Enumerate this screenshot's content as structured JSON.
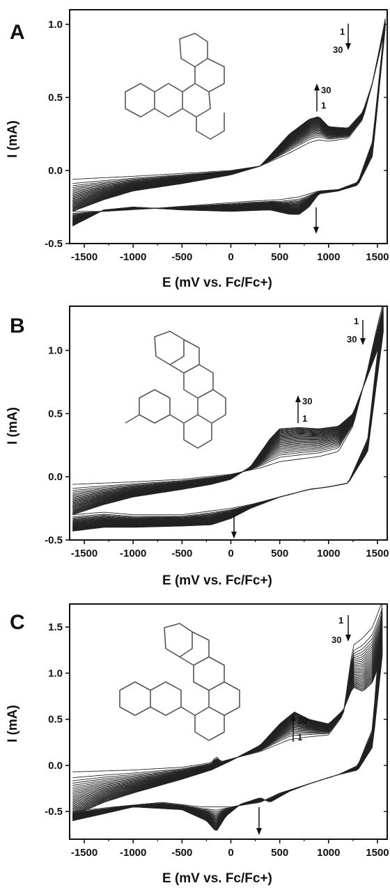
{
  "figure": {
    "panels": [
      "A",
      "B",
      "C"
    ],
    "xlabel": "E (mV vs. Fc/Fc+)",
    "ylabel": "I (mA)"
  },
  "chart_data": [
    {
      "type": "line",
      "panel": "A",
      "xlabel": "E (mV vs. Fc/Fc+)",
      "ylabel": "I (mA)",
      "xlim": [
        -1650,
        1600
      ],
      "ylim": [
        -0.5,
        1.1
      ],
      "xticks": [
        -1500,
        -1000,
        -500,
        0,
        500,
        1000,
        1500
      ],
      "yticks": [
        -0.5,
        0.0,
        0.5,
        1.0
      ],
      "yticklabels": [
        "-0.5",
        "0.0",
        "0.5",
        "1.0"
      ],
      "annotations": [
        "1",
        "30",
        "30",
        "1"
      ],
      "cycles": {
        "first": 1,
        "last": 30
      },
      "anodic_first": {
        "x": [
          -1620,
          -1000,
          -500,
          0,
          300,
          600,
          800,
          900,
          1000,
          1200,
          1350,
          1450,
          1540,
          1580
        ],
        "y": [
          -0.06,
          -0.04,
          -0.02,
          0.0,
          0.03,
          0.12,
          0.19,
          0.21,
          0.2,
          0.22,
          0.35,
          0.6,
          0.9,
          1.04
        ]
      },
      "anodic_last": {
        "x": [
          -1620,
          -1300,
          -1000,
          -500,
          0,
          300,
          600,
          800,
          900,
          1000,
          1200,
          1350,
          1450,
          1540,
          1580
        ],
        "y": [
          -0.28,
          -0.2,
          -0.14,
          -0.09,
          -0.03,
          0.03,
          0.25,
          0.35,
          0.37,
          0.3,
          0.29,
          0.4,
          0.6,
          0.86,
          0.98
        ]
      },
      "cathodic_first": {
        "x": [
          1580,
          1450,
          1300,
          1100,
          900,
          700,
          500,
          200,
          -200,
          -800,
          -1300,
          -1620
        ],
        "y": [
          1.04,
          0.2,
          -0.08,
          -0.13,
          -0.14,
          -0.18,
          -0.2,
          -0.21,
          -0.23,
          -0.26,
          -0.28,
          -0.28
        ]
      },
      "cathodic_last": {
        "x": [
          1580,
          1450,
          1300,
          1100,
          900,
          800,
          700,
          600,
          400,
          0,
          -500,
          -1000,
          -1300,
          -1620
        ],
        "y": [
          0.98,
          0.1,
          -0.1,
          -0.14,
          -0.16,
          -0.25,
          -0.3,
          -0.3,
          -0.27,
          -0.28,
          -0.27,
          -0.25,
          -0.27,
          -0.38
        ]
      }
    },
    {
      "type": "line",
      "panel": "B",
      "xlabel": "E (mV vs. Fc/Fc+)",
      "ylabel": "I (mA)",
      "xlim": [
        -1650,
        1600
      ],
      "ylim": [
        -0.5,
        1.35
      ],
      "xticks": [
        -1500,
        -1000,
        -500,
        0,
        500,
        1000,
        1500
      ],
      "yticks": [
        -0.5,
        0.0,
        0.5,
        1.0
      ],
      "yticklabels": [
        "-0.5",
        "0.0",
        "0.5",
        "1.0"
      ],
      "annotations": [
        "1",
        "30",
        "30",
        "1"
      ],
      "cycles": {
        "first": 1,
        "last": 30
      },
      "anodic_first": {
        "x": [
          -1620,
          -1000,
          -500,
          0,
          300,
          500,
          700,
          900,
          1100,
          1250,
          1400,
          1500,
          1560
        ],
        "y": [
          -0.06,
          -0.04,
          -0.02,
          0.02,
          0.07,
          0.12,
          0.14,
          0.16,
          0.2,
          0.4,
          0.85,
          1.2,
          1.38
        ]
      },
      "anodic_last": {
        "x": [
          -1620,
          -1300,
          -1000,
          -500,
          -200,
          0,
          200,
          400,
          500,
          700,
          900,
          1100,
          1250,
          1400,
          1500,
          1560
        ],
        "y": [
          -0.3,
          -0.22,
          -0.16,
          -0.1,
          -0.06,
          -0.02,
          0.08,
          0.3,
          0.38,
          0.39,
          0.38,
          0.4,
          0.5,
          0.8,
          1.0,
          1.15
        ]
      },
      "cathodic_first": {
        "x": [
          1560,
          1400,
          1200,
          1000,
          800,
          500,
          200,
          0,
          -500,
          -1000,
          -1300,
          -1620
        ],
        "y": [
          1.38,
          0.3,
          -0.05,
          -0.08,
          -0.1,
          -0.16,
          -0.22,
          -0.25,
          -0.3,
          -0.3,
          -0.28,
          -0.3
        ]
      },
      "cathodic_last": {
        "x": [
          1560,
          1400,
          1200,
          1000,
          800,
          500,
          200,
          0,
          -200,
          -500,
          -1000,
          -1300,
          -1620
        ],
        "y": [
          1.15,
          0.2,
          -0.05,
          -0.08,
          -0.1,
          -0.16,
          -0.25,
          -0.33,
          -0.38,
          -0.39,
          -0.4,
          -0.4,
          -0.43
        ]
      }
    },
    {
      "type": "line",
      "panel": "C",
      "xlabel": "E (mV vs. Fc/Fc+)",
      "ylabel": "I (mA)",
      "xlim": [
        -1650,
        1600
      ],
      "ylim": [
        -0.8,
        1.75
      ],
      "xticks": [
        -1500,
        -1000,
        -500,
        0,
        500,
        1000,
        1500
      ],
      "yticks": [
        -0.5,
        0.0,
        0.5,
        1.0,
        1.5
      ],
      "yticklabels": [
        "-0.5",
        "0.0",
        "0.5",
        "1.0",
        "1.5"
      ],
      "annotations": [
        "1",
        "30",
        "30",
        "1"
      ],
      "cycles": {
        "first": 1,
        "last": 30
      },
      "anodic_first": {
        "x": [
          -1620,
          -1000,
          -500,
          -200,
          -150,
          -100,
          0,
          300,
          600,
          800,
          1000,
          1150,
          1250,
          1350,
          1450,
          1550
        ],
        "y": [
          -0.07,
          -0.05,
          -0.02,
          0.03,
          0.1,
          0.04,
          0.07,
          0.15,
          0.28,
          0.31,
          0.33,
          0.55,
          1.3,
          1.38,
          1.5,
          1.78
        ]
      },
      "anodic_last": {
        "x": [
          -1620,
          -1300,
          -1000,
          -500,
          -200,
          0,
          300,
          500,
          650,
          800,
          1000,
          1150,
          1250,
          1350,
          1450,
          1550
        ],
        "y": [
          -0.55,
          -0.4,
          -0.3,
          -0.15,
          -0.05,
          0.05,
          0.22,
          0.45,
          0.58,
          0.5,
          0.45,
          0.6,
          0.85,
          0.8,
          0.9,
          1.2
        ]
      },
      "cathodic_first": {
        "x": [
          1550,
          1450,
          1300,
          1100,
          800,
          500,
          300,
          0,
          -300,
          -700,
          -1200,
          -1620
        ],
        "y": [
          1.78,
          0.4,
          0.0,
          -0.1,
          -0.2,
          -0.3,
          -0.4,
          -0.45,
          -0.45,
          -0.4,
          -0.45,
          -0.5
        ]
      },
      "cathodic_last": {
        "x": [
          1550,
          1450,
          1300,
          1100,
          800,
          600,
          400,
          300,
          100,
          -50,
          -150,
          -250,
          -500,
          -1000,
          -1200,
          -1620
        ],
        "y": [
          1.2,
          0.2,
          -0.05,
          -0.1,
          -0.2,
          -0.28,
          -0.4,
          -0.35,
          -0.42,
          -0.55,
          -0.72,
          -0.6,
          -0.48,
          -0.45,
          -0.5,
          -0.6
        ]
      }
    }
  ]
}
